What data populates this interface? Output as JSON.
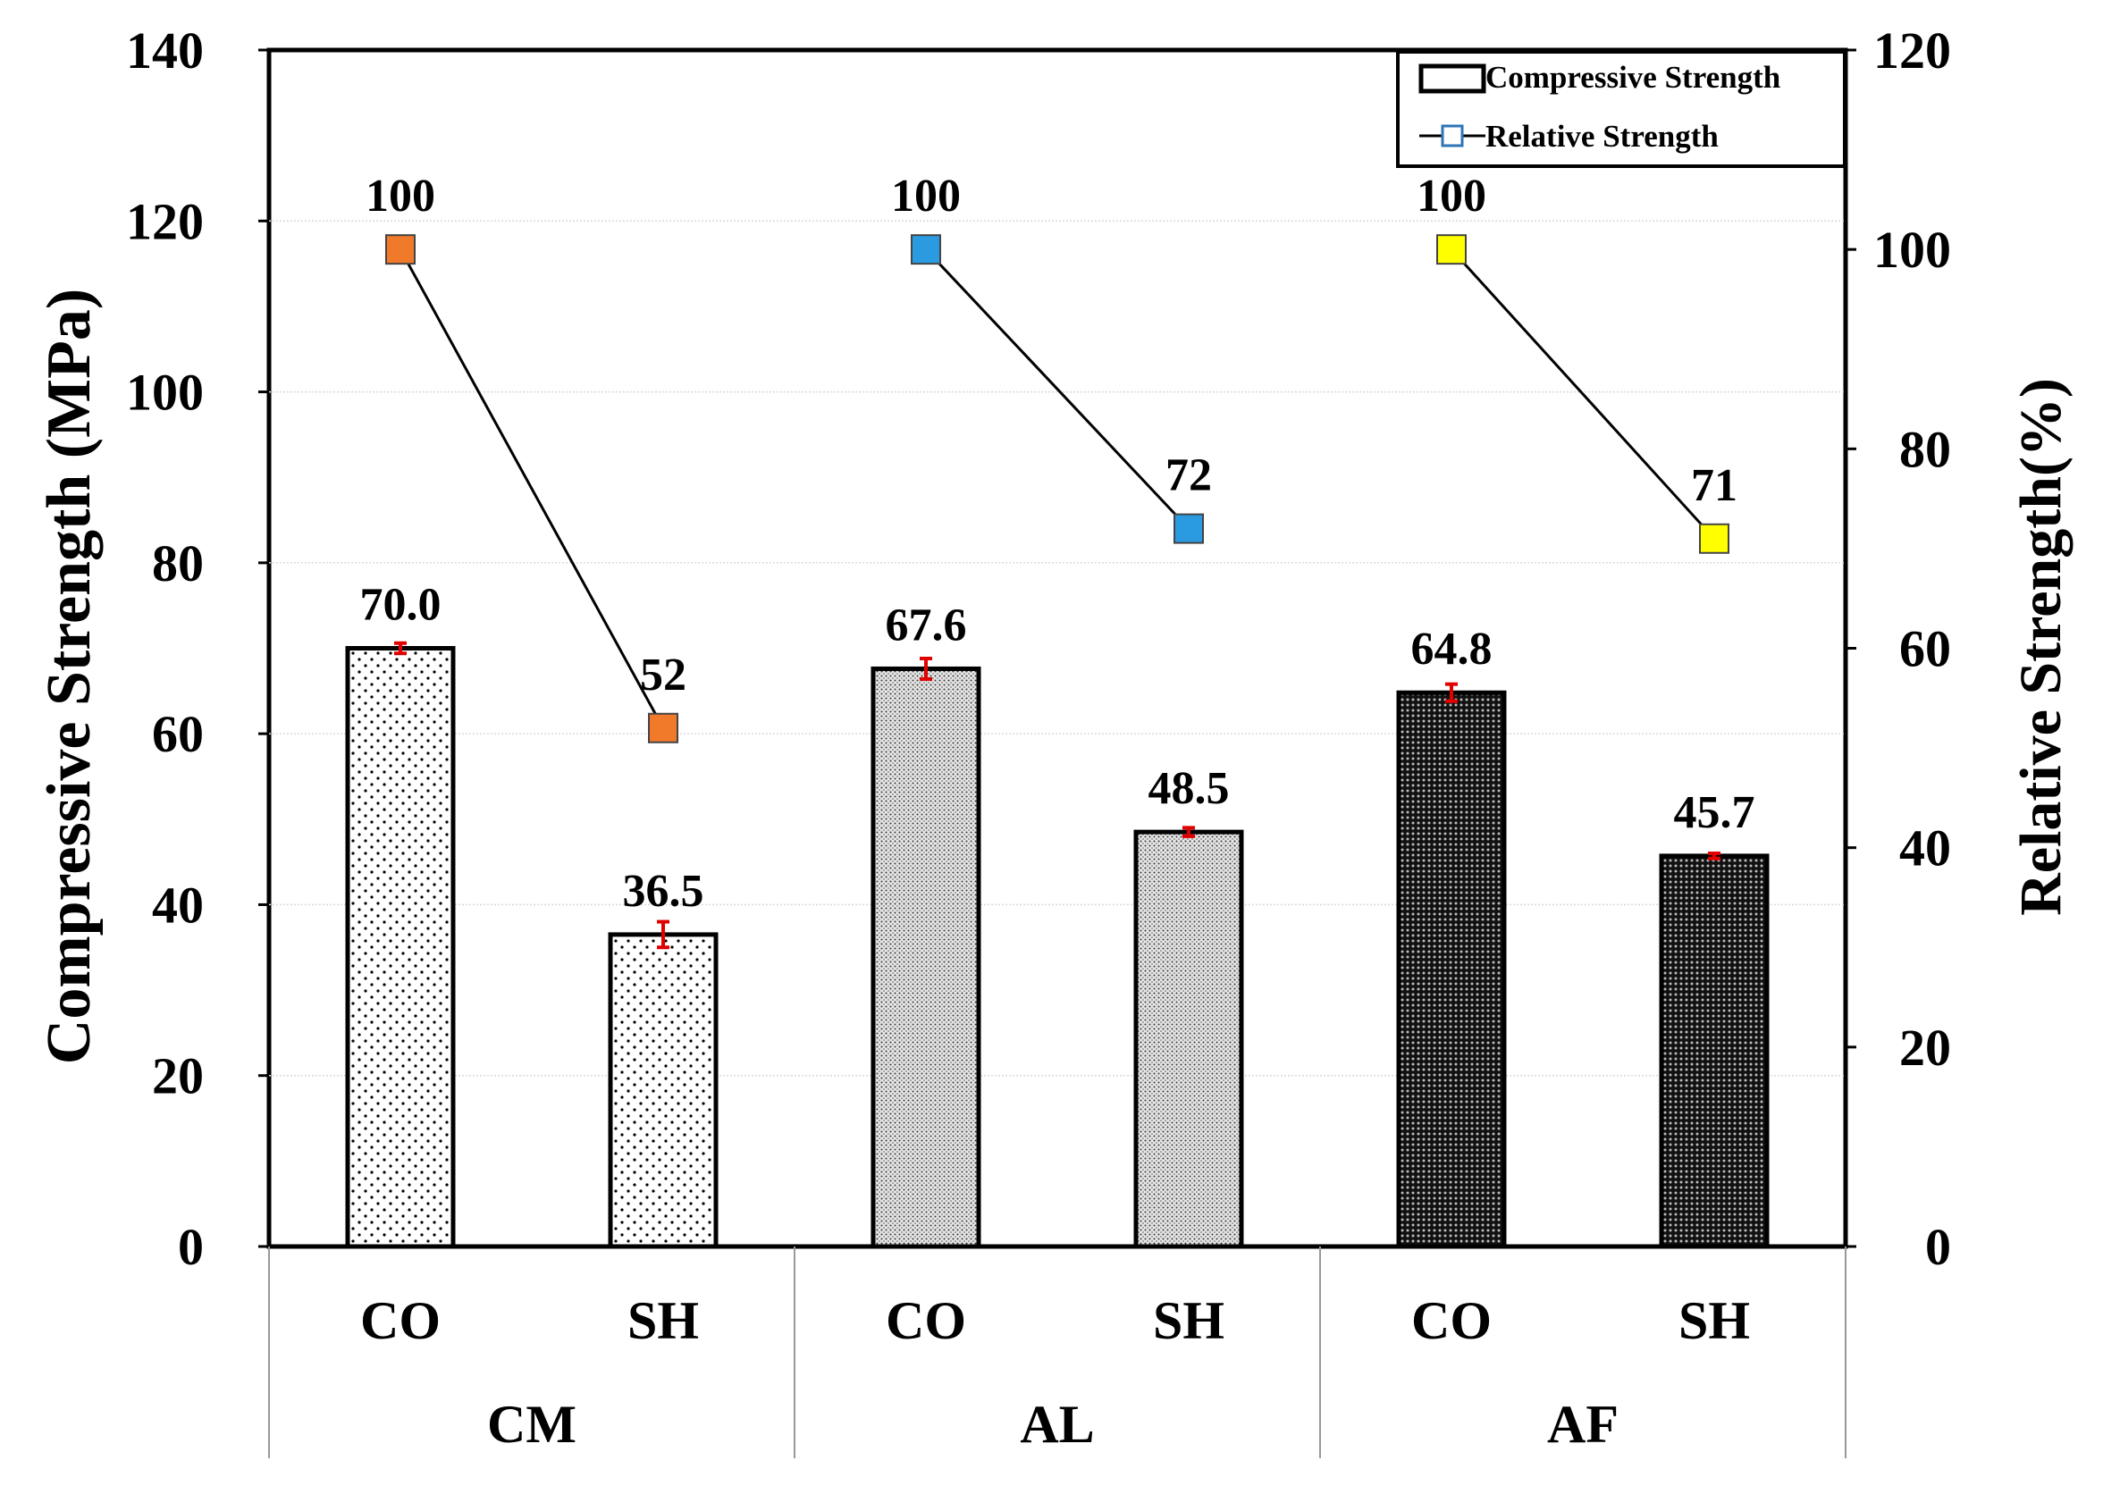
{
  "chart_data": {
    "type": "bar",
    "title": "",
    "groups": [
      "CM",
      "AL",
      "AF"
    ],
    "categories": [
      "CO",
      "SH",
      "CO",
      "SH",
      "CO",
      "SH"
    ],
    "compressive_strength": {
      "name": "Compressive Strength",
      "values": [
        70.0,
        36.5,
        67.6,
        48.5,
        64.8,
        45.7
      ],
      "labels": [
        "70.0",
        "36.5",
        "67.6",
        "48.5",
        "64.8",
        "45.7"
      ],
      "error": [
        0.6,
        1.5,
        1.2,
        0.5,
        1.0,
        0.3
      ]
    },
    "relative_strength": {
      "name": "Relative Strength",
      "values": [
        100,
        52,
        100,
        72,
        100,
        71
      ],
      "labels": [
        "100",
        "52",
        "100",
        "72",
        "100",
        "71"
      ],
      "marker_colors": [
        "#f07a2a",
        "#f07a2a",
        "#2a9be0",
        "#2a9be0",
        "#ffff00",
        "#ffff00"
      ]
    },
    "ylabel": "Compressive Strength (MPa)",
    "y2label": "Relative Strength(%)",
    "ylim": [
      0,
      140
    ],
    "yticks": [
      "0",
      "20",
      "40",
      "60",
      "80",
      "100",
      "120",
      "140"
    ],
    "y2lim": [
      0,
      120
    ],
    "y2ticks": [
      "0",
      "20",
      "40",
      "60",
      "80",
      "100",
      "120"
    ],
    "legend": [
      "Compressive Strength",
      "Relative Strength"
    ],
    "legend_position": "top-right",
    "colors": {
      "error_bar": "#e00000",
      "line": "#000000",
      "legend_marker": "#2e75b6"
    }
  }
}
